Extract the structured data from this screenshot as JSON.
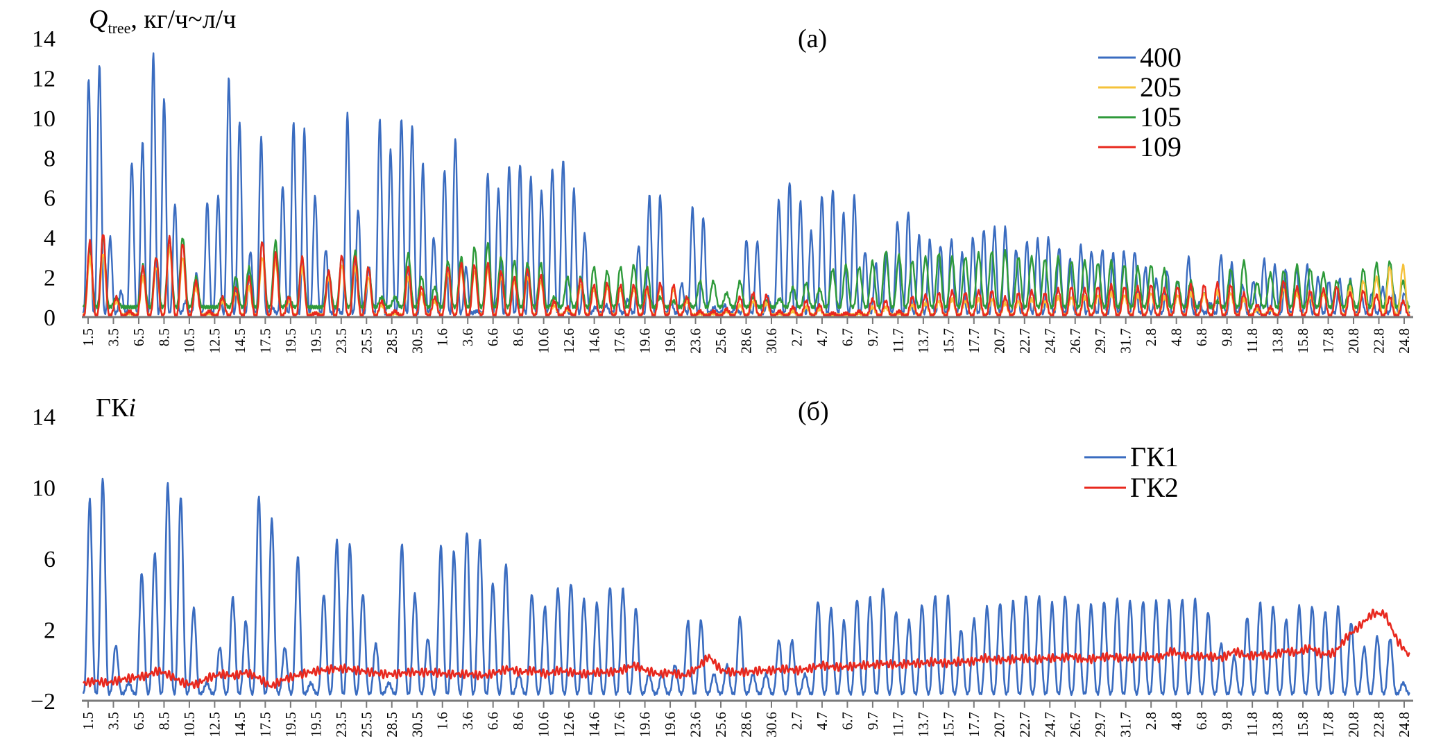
{
  "chart_data": [
    {
      "type": "line",
      "panel_label": "(a)",
      "ylabel": {
        "main": "Q",
        "subscript": "tree",
        "units": ", кг/ч~л/ч"
      },
      "ylim": [
        0,
        14
      ],
      "yticks": [
        0,
        2,
        4,
        6,
        8,
        10,
        12,
        14
      ],
      "grid": false,
      "legend": "top-right",
      "xticklabels": [
        "1.5",
        "3.5",
        "6.5",
        "8.5",
        "10.5",
        "12.5",
        "14.5",
        "17.5",
        "19.5",
        "19.5",
        "23.5",
        "25.5",
        "28.5",
        "30.5",
        "1.6",
        "3.6",
        "6.6",
        "8.6",
        "10.6",
        "12.6",
        "14.6",
        "17.6",
        "19.6",
        "19.6",
        "23.6",
        "25.6",
        "28.6",
        "30.6",
        "2.7",
        "4.7",
        "6.7",
        "9.7",
        "11.7",
        "13.7",
        "15.7",
        "17.7",
        "20.7",
        "22.7",
        "24.7",
        "26.7",
        "29.7",
        "31.7",
        "2.8",
        "4.8",
        "6.8",
        "9.8",
        "11.8",
        "13.8",
        "15.8",
        "17.8",
        "20.8",
        "22.8",
        "24.8"
      ],
      "series": [
        {
          "name": "400",
          "color": "#3a6cc0",
          "baseline": 0.2,
          "daily_peaks": [
            12,
            12.7,
            4,
            1.3,
            7.8,
            8.8,
            13.2,
            11,
            5.7,
            0.8,
            2.2,
            5.8,
            6.1,
            12,
            9.8,
            3.3,
            9,
            0.5,
            6.6,
            9.8,
            9.4,
            6.1,
            3.4,
            0.5,
            10.2,
            5.4,
            2.5,
            9.9,
            8.4,
            10,
            9.6,
            7.7,
            4,
            7.4,
            8.9,
            2.5,
            0.3,
            7.2,
            6.4,
            7.6,
            7.7,
            7,
            6.3,
            7.5,
            7.9,
            6.4,
            4.2,
            0.5,
            0.6,
            0.8,
            0.9,
            3.6,
            6.1,
            6.1,
            0.8,
            1.7,
            5.5,
            5,
            0.5,
            0.6,
            0.5,
            3.9,
            3.8,
            1,
            5.9,
            6.8,
            5.8,
            4.3,
            6.1,
            6.4,
            5.2,
            6.1,
            3.3,
            2.7,
            3.2,
            4.8,
            5.3,
            4.1,
            3.9,
            3.6,
            3.9,
            3.2,
            4,
            4.4,
            4.5,
            4.5,
            3.4,
            3.8,
            3.9,
            4,
            3.5,
            2.9,
            3.6,
            3.3,
            3.4,
            3.2,
            3.3,
            3.3,
            2.5,
            1.9,
            2.3,
            1.8,
            3,
            0.7,
            0.7,
            3.1,
            2.7,
            1.6,
            1.8,
            2.9,
            2.6,
            2.4,
            2.4,
            2.6,
            2,
            1.8,
            1.9,
            1.9,
            1.1,
            1.2,
            1.5,
            1.3,
            1.2
          ]
        },
        {
          "name": "205",
          "color": "#f5c23a",
          "baseline": 0.1,
          "daily_peaks": [
            3,
            3.2,
            0.8,
            0.2,
            2,
            2.5,
            3.5,
            3,
            1.5,
            0.2,
            0.8,
            1.2,
            1.5,
            3,
            2.8,
            0.8,
            2.5,
            0.2,
            2,
            2.6,
            2.5,
            2,
            0.6,
            0.2,
            2,
            1.2,
            0.8,
            2.2,
            2.4,
            2.3,
            2.4,
            2,
            1.8,
            2,
            1.8,
            0.6,
            0.4,
            1.6,
            1.4,
            1.5,
            1.4,
            1.4,
            1.3,
            1.5,
            1.4,
            0.8,
            0.2,
            0.2,
            0.3,
            0.6,
            0.8,
            0.7,
            0.2,
            0.3,
            0.5,
            0.4,
            0.1,
            0.1,
            0.2,
            0.5,
            0.5,
            0.2,
            0.6,
            0.7,
            0.8,
            0.9,
            0.8,
            0.9,
            0.9,
            0.7,
            0.8,
            0.9,
            0.8,
            1,
            1,
            1,
            1.1,
            1.2,
            1.1,
            1.1,
            1.2,
            1,
            1.1,
            1.2,
            1.2,
            1.3,
            1.2,
            0.9,
            0.4,
            0.4,
            1.4,
            1.2,
            1,
            1.2,
            1.5,
            1.5,
            1.8,
            2,
            2.5,
            2.6
          ]
        },
        {
          "name": "105",
          "color": "#2e9a3a",
          "baseline": 0.5,
          "daily_peaks": [
            3.5,
            4,
            1,
            0.5,
            2.6,
            3,
            4,
            4,
            2,
            0.5,
            1,
            2,
            2.5,
            3.8,
            3.8,
            1,
            3,
            0.5,
            2.3,
            3,
            3.3,
            2.5,
            1,
            1,
            3.2,
            2,
            1.5,
            2.8,
            3,
            3.5,
            3.7,
            3,
            2.8,
            2.7,
            2.7,
            1,
            2,
            2,
            2.5,
            2.3,
            2.5,
            2.6,
            2.5,
            1,
            0.8,
            1,
            1.8,
            1.8,
            1.2,
            1.8,
            1,
            0.8,
            0.9,
            1.5,
            1.7,
            1.4,
            2.4,
            2.6,
            2.5,
            2.8,
            3.3,
            3.1,
            2.8,
            3,
            3.2,
            3,
            3,
            3.2,
            3.3,
            3.3,
            3,
            3,
            2.9,
            3,
            2.8,
            2.8,
            2.7,
            2.8,
            2.6,
            2.5,
            2.6,
            2.4,
            1.8,
            1.8,
            1.2,
            0.8,
            2.4,
            2.8,
            1.7,
            2.2,
            2.3,
            2.6,
            2.4,
            2.2,
            1.8,
            1.8,
            2.4,
            2.7,
            2.8,
            1.8
          ]
        },
        {
          "name": "109",
          "color": "#e8281e",
          "baseline": 0.05,
          "daily_peaks": [
            3.8,
            4.2,
            1,
            0.3,
            2.5,
            3,
            4,
            3.7,
            1.8,
            0.3,
            1,
            1.5,
            2,
            3.8,
            3.2,
            1,
            3,
            0.2,
            2.3,
            3.1,
            3,
            2.5,
            0.8,
            0.3,
            2.5,
            1.5,
            1,
            2.5,
            2.7,
            2.6,
            2.7,
            2.3,
            2,
            2.4,
            2.1,
            0.8,
            0.5,
            1.9,
            1.6,
            1.7,
            1.6,
            1.6,
            1.5,
            1.7,
            1.6,
            1,
            0.3,
            0.3,
            0.4,
            1,
            1.2,
            1.1,
            0.3,
            0.5,
            0.8,
            0.6,
            0.2,
            0.2,
            0.3,
            0.9,
            0.8,
            0.3,
            1,
            1.1,
            1.2,
            1.3,
            1.2,
            1.3,
            1.3,
            1,
            1.2,
            1.3,
            1.2,
            1.4,
            1.5,
            1.4,
            1.5,
            1.6,
            1.5,
            1.5,
            1.6,
            1.4,
            1.5,
            1.6,
            1.6,
            1.7,
            1.6,
            1.2,
            0.6,
            0.5,
            1.8,
            1.5,
            1.3,
            1.4,
            1.5,
            1.2,
            1.3,
            1.1,
            1,
            0.8
          ]
        }
      ]
    },
    {
      "type": "line",
      "panel_label": "(б)",
      "ylabel": {
        "main": "ГК",
        "italic": "i"
      },
      "ylim": [
        -2,
        14
      ],
      "yticks": [
        -2,
        2,
        6,
        10,
        14
      ],
      "yticklabels": [
        "−2",
        "2",
        "6",
        "10",
        "14"
      ],
      "grid": false,
      "legend": "right",
      "xticklabels": [
        "1.5",
        "3.5",
        "6.5",
        "8.5",
        "10.5",
        "12.5",
        "14.5",
        "17.5",
        "19.5",
        "19.5",
        "23.5",
        "25.5",
        "28.5",
        "30.5",
        "1.6",
        "3.6",
        "6.6",
        "8.6",
        "10.6",
        "12.6",
        "14.6",
        "17.6",
        "19.6",
        "19.6",
        "23.6",
        "25.6",
        "28.6",
        "30.6",
        "2.7",
        "4.7",
        "6.7",
        "9.7",
        "11.7",
        "13.7",
        "15.7",
        "17.7",
        "20.7",
        "22.7",
        "24.7",
        "26.7",
        "29.7",
        "31.7",
        "2.8",
        "4.8",
        "6.8",
        "9.8",
        "11.8",
        "13.8",
        "15.8",
        "17.8",
        "20.8",
        "22.8",
        "24.8"
      ],
      "series": [
        {
          "name": "ГК1",
          "color": "#3a6cc0",
          "baseline": -1.6,
          "daily_peaks": [
            9.3,
            10.5,
            1.1,
            -1,
            5.2,
            6.3,
            10.2,
            9.5,
            3.2,
            -1,
            1,
            3.8,
            2.5,
            9.5,
            8.2,
            1,
            6.1,
            -1,
            4,
            7,
            6.8,
            4,
            1.2,
            -1,
            6.8,
            4,
            1.5,
            6.7,
            6.4,
            7.5,
            7,
            4.6,
            5.7,
            -0.5,
            4,
            3.3,
            4.3,
            4.6,
            3.7,
            3.5,
            4.4,
            4.3,
            3.2,
            -0.5,
            -0.5,
            0,
            2.5,
            2.5,
            -0.5,
            0,
            2.7,
            -0.5,
            -0.5,
            1.4,
            1.4,
            -0.5,
            3.6,
            3.2,
            2.5,
            3.7,
            3.8,
            4.3,
            3,
            2.5,
            3.4,
            3.9,
            3.9,
            2,
            2.6,
            3.3,
            3.5,
            3.6,
            3.9,
            3.9,
            3.5,
            3.9,
            3.4,
            3.4,
            3.6,
            3.7,
            3.6,
            3.6,
            3.6,
            3.7,
            3.7,
            3.7,
            3,
            1.2,
            0.5,
            2.7,
            3.5,
            3.3,
            2.6,
            3.3,
            3.3,
            3,
            3.3,
            2.4,
            1,
            1.6,
            1.5,
            -1
          ]
        },
        {
          "name": "ГК2",
          "color": "#e8281e",
          "daily_values": [
            -1,
            -0.9,
            -1,
            -0.8,
            -0.7,
            -0.6,
            -0.3,
            -0.6,
            -1,
            -1.1,
            -0.7,
            -0.5,
            -0.6,
            -0.4,
            -0.7,
            -1.2,
            -0.8,
            -0.6,
            -0.4,
            -0.3,
            -0.2,
            -0.2,
            -0.3,
            -0.4,
            -0.5,
            -0.5,
            -0.4,
            -0.4,
            -0.4,
            -0.5,
            -0.5,
            -0.5,
            -0.6,
            -0.4,
            -0.2,
            -0.4,
            -0.3,
            -0.5,
            -0.3,
            -0.4,
            -0.5,
            -0.4,
            -0.4,
            -0.3,
            0,
            -0.3,
            -0.5,
            -0.4,
            -0.6,
            -0.2,
            0.5,
            -0.3,
            -0.4,
            -0.4,
            -0.3,
            -0.3,
            -0.2,
            -0.3,
            -0.2,
            0,
            -0.1,
            -0.1,
            0,
            0,
            0.1,
            0,
            0.1,
            0.1,
            0.2,
            0.1,
            0.2,
            0.2,
            0.4,
            0.3,
            0.3,
            0.4,
            0.3,
            0.4,
            0.4,
            0.5,
            0.3,
            0.4,
            0.5,
            0.4,
            0.4,
            0.5,
            0.4,
            0.8,
            0.5,
            0.5,
            0.5,
            0.4,
            0.8,
            0.5,
            0.6,
            0.5,
            0.8,
            0.7,
            1,
            0.6,
            0.7,
            1.6,
            2.2,
            2.9,
            2.9,
            1.4,
            0.5
          ]
        }
      ]
    }
  ]
}
